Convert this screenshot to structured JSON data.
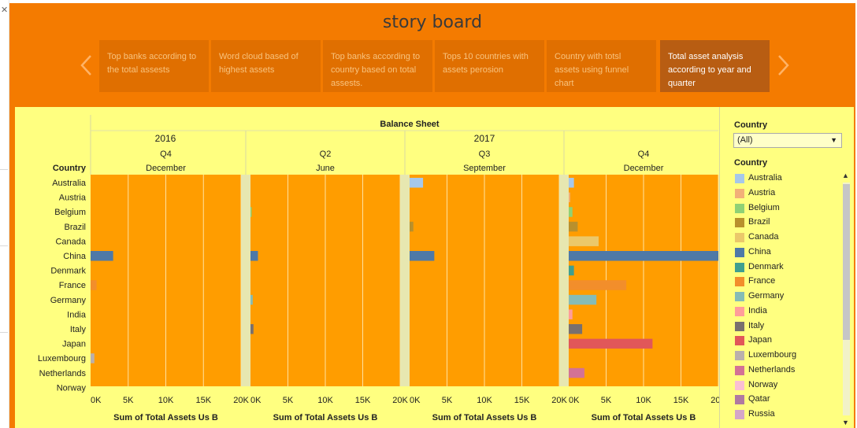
{
  "story": {
    "title": "story board",
    "points": [
      {
        "label": "Top banks according to the total assests",
        "active": false
      },
      {
        "label": "Word cloud based of highest assets",
        "active": false
      },
      {
        "label": "Top banks according to country based on total assests.",
        "active": false
      },
      {
        "label": "Tops 10 countries with assets perosion",
        "active": false
      },
      {
        "label": "Country with totsl assets using funnel chart",
        "active": false
      },
      {
        "label": "Total asset analysis according to year and quarter",
        "active": true
      }
    ]
  },
  "chart_data": {
    "type": "bar",
    "orientation": "horizontal",
    "title": "Balance Sheet",
    "row_header": "Country",
    "categories": [
      "Australia",
      "Austria",
      "Belgium",
      "Brazil",
      "Canada",
      "China",
      "Denmark",
      "France",
      "Germany",
      "India",
      "Italy",
      "Japan",
      "Luxembourg",
      "Netherlands",
      "Norway"
    ],
    "years": [
      {
        "label": "2016",
        "span": 1
      },
      {
        "label": "2017",
        "span": 3
      }
    ],
    "panels": [
      {
        "quarter": "Q4",
        "month": "December",
        "values": [
          0,
          0,
          0,
          0,
          0,
          3000,
          0,
          800,
          0,
          0,
          0,
          0,
          500,
          0,
          0
        ]
      },
      {
        "quarter": "Q2",
        "month": "June",
        "values": [
          0,
          0,
          150,
          0,
          0,
          1000,
          0,
          0,
          300,
          0,
          400,
          0,
          0,
          0,
          0
        ]
      },
      {
        "quarter": "Q3",
        "month": "September",
        "values": [
          1800,
          0,
          0,
          500,
          0,
          3300,
          0,
          0,
          0,
          0,
          0,
          0,
          0,
          0,
          0
        ]
      },
      {
        "quarter": "Q4",
        "month": "December",
        "values": [
          700,
          200,
          500,
          1200,
          4000,
          20000,
          700,
          7700,
          3700,
          500,
          1800,
          11200,
          0,
          2100,
          0
        ]
      }
    ],
    "x_ticks": [
      "0K",
      "5K",
      "10K",
      "15K",
      "20K"
    ],
    "xlim": [
      0,
      20000
    ],
    "xlabel": "Sum of Total Assets Us B",
    "grid": true
  },
  "colors": {
    "background": "#f47b00",
    "content_bg": "#ffff80",
    "plot_bg": "#ff9d00",
    "Australia": "#a6c8ea",
    "Austria": "#f2b078",
    "Belgium": "#8fd175",
    "Brazil": "#b8902d",
    "Canada": "#ebc86a",
    "China": "#4e79a7",
    "Denmark": "#3f9f8f",
    "France": "#f28e2b",
    "Germany": "#86bcb6",
    "India": "#ff9d9a",
    "Italy": "#79706e",
    "Japan": "#e15759",
    "Luxembourg": "#bab0ac",
    "Netherlands": "#d37295",
    "Norway": "#fabfd2",
    "Qatar": "#b07aa1",
    "Russia": "#d4a6c8"
  },
  "filter": {
    "title": "Country",
    "selected": "(All)"
  },
  "legend": {
    "title": "Country",
    "items": [
      "Australia",
      "Austria",
      "Belgium",
      "Brazil",
      "Canada",
      "China",
      "Denmark",
      "France",
      "Germany",
      "India",
      "Italy",
      "Japan",
      "Luxembourg",
      "Netherlands",
      "Norway",
      "Qatar",
      "Russia"
    ]
  },
  "icons": {
    "prev": "chevron-left-icon",
    "next": "chevron-right-icon",
    "close": "close-icon",
    "dropdown": "caret-down-icon"
  }
}
